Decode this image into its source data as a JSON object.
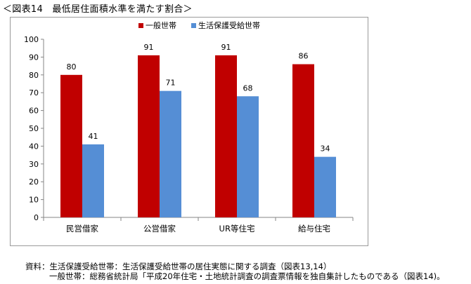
{
  "figure_title": "＜図表14　最低居住面積水準を満たす割合＞",
  "colors": {
    "general": "#c00000",
    "welfare": "#558ed5",
    "axis": "#868686"
  },
  "chart_data": {
    "type": "bar",
    "title": "",
    "xlabel": "",
    "ylabel": "",
    "ylim": [
      0,
      100
    ],
    "yticks": [
      0,
      10,
      20,
      30,
      40,
      50,
      60,
      70,
      80,
      90,
      100
    ],
    "grid": false,
    "legend_position": "top",
    "categories": [
      "民営借家",
      "公営借家",
      "UR等住宅",
      "給与住宅"
    ],
    "series": [
      {
        "name": "一般世帯",
        "values": [
          80,
          91,
          91,
          86
        ]
      },
      {
        "name": "生活保護受給世帯",
        "values": [
          41,
          71,
          68,
          34
        ]
      }
    ]
  },
  "source_note": {
    "line1": "資料：生活保護受給世帯：生活保護受給世帯の居住実態に関する調査（図表13,14）",
    "line2": "一般世帯：総務省統計局「平成20年住宅・土地統計調査の調査票情報を独自集計したものである（図表14)。"
  }
}
